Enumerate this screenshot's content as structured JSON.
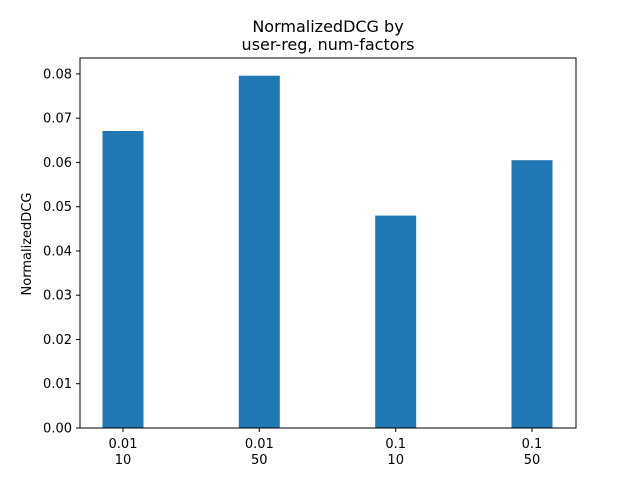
{
  "chart_data": {
    "type": "bar",
    "title_lines": [
      "NormalizedDCG by",
      "user-reg, num-factors"
    ],
    "xlabel": "",
    "ylabel": "NormalizedDCG",
    "categories": [
      [
        "0.01",
        "10"
      ],
      [
        "0.01",
        "50"
      ],
      [
        "0.1",
        "10"
      ],
      [
        "0.1",
        "50"
      ]
    ],
    "values": [
      0.0671,
      0.0796,
      0.048,
      0.0605
    ],
    "ylim": [
      0,
      0.0836
    ],
    "yticks": [
      "0.00",
      "0.01",
      "0.02",
      "0.03",
      "0.04",
      "0.05",
      "0.06",
      "0.07",
      "0.08"
    ],
    "grid": false,
    "legend": "none",
    "bar_color": "#1f77b4"
  }
}
